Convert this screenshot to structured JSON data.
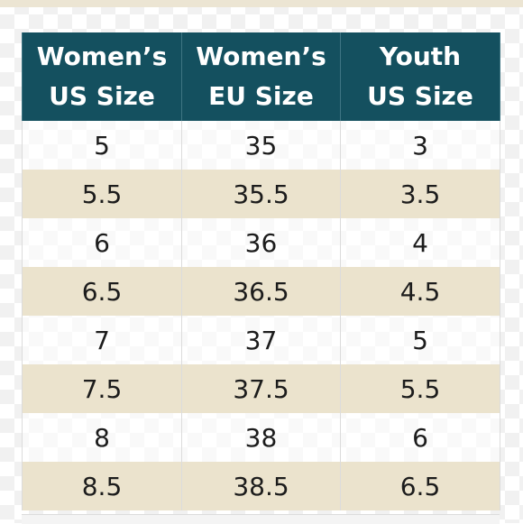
{
  "table": {
    "headers": [
      {
        "line1": "Women’s",
        "line2": "US Size"
      },
      {
        "line1": "Women’s",
        "line2": "EU Size"
      },
      {
        "line1": "Youth",
        "line2": "US Size"
      }
    ],
    "rows": [
      [
        "5",
        "35",
        "3"
      ],
      [
        "5.5",
        "35.5",
        "3.5"
      ],
      [
        "6",
        "36",
        "4"
      ],
      [
        "6.5",
        "36.5",
        "4.5"
      ],
      [
        "7",
        "37",
        "5"
      ],
      [
        "7.5",
        "37.5",
        "5.5"
      ],
      [
        "8",
        "38",
        "6"
      ],
      [
        "8.5",
        "38.5",
        "6.5"
      ]
    ]
  },
  "colors": {
    "header_bg": "#14505f",
    "header_text": "#ffffff",
    "band_bg": "#ebe3cd",
    "cell_text": "#1c1c1c"
  }
}
